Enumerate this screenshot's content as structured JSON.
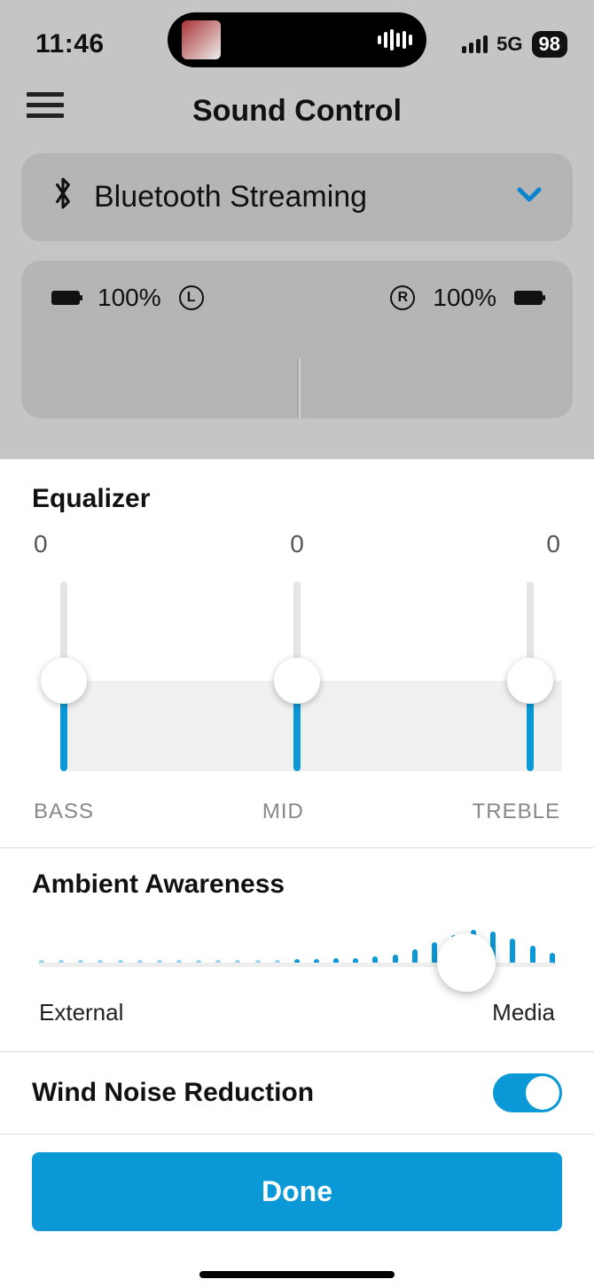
{
  "status": {
    "time": "11:46",
    "cellular_label": "5G",
    "battery_percent": "98"
  },
  "header": {
    "title": "Sound Control"
  },
  "dropdown": {
    "label": "Bluetooth Streaming"
  },
  "battery": {
    "left_pct": "100%",
    "left_letter": "L",
    "right_pct": "100%",
    "right_letter": "R"
  },
  "equalizer": {
    "title": "Equalizer",
    "bands": [
      {
        "value": "0",
        "label": "BASS"
      },
      {
        "value": "0",
        "label": "MID"
      },
      {
        "value": "0",
        "label": "TREBLE"
      }
    ],
    "thumb_color": "#ffffff",
    "active_color": "#0a99d6",
    "track_color": "#e5e5e5",
    "fill_color": "#f0f0f0"
  },
  "ambient": {
    "title": "Ambient Awareness",
    "left_label": "External",
    "right_label": "Media",
    "thumb_position_pct": 82,
    "bar_heights": [
      5,
      5,
      5,
      5,
      5,
      5,
      5,
      5,
      5,
      5,
      5,
      6,
      6,
      7,
      7,
      8,
      8,
      10,
      12,
      18,
      26,
      34,
      40,
      38,
      30,
      22,
      14
    ],
    "bar_color": "#0a99d6"
  },
  "wind": {
    "label": "Wind Noise Reduction",
    "enabled": true
  },
  "done_label": "Done",
  "colors": {
    "accent": "#0a99d6",
    "dim_bg": "#c5c5c5",
    "card_bg": "#b5b5b5"
  }
}
